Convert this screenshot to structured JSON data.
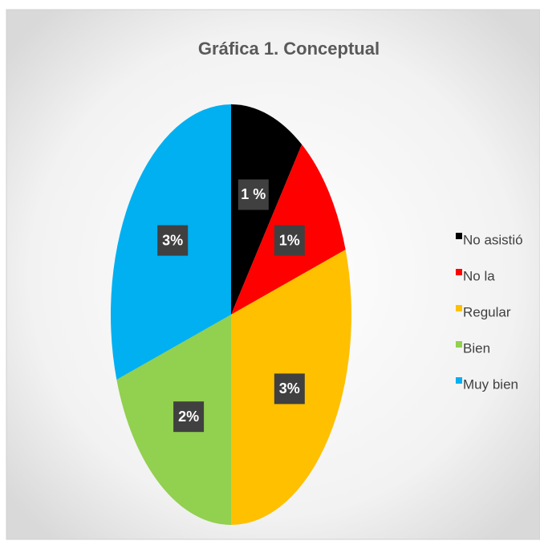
{
  "chart_data": {
    "type": "pie",
    "title": "Gráfica 1.  Conceptual",
    "categories": [
      "No asistió",
      "No la",
      "Regular",
      "Bien",
      "Muy bien"
    ],
    "values": [
      1,
      1,
      3,
      2,
      3
    ],
    "value_labels": [
      "1 %",
      "1%",
      "3%",
      "2%",
      "3%"
    ],
    "colors": [
      "#000000",
      "#ff0000",
      "#ffc000",
      "#92d050",
      "#00b0f0"
    ],
    "legend": "right"
  }
}
